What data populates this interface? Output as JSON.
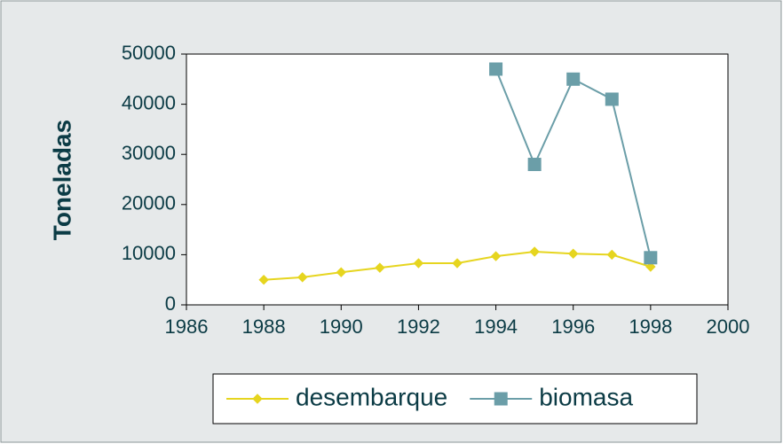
{
  "chart_data": {
    "type": "line",
    "ylabel": "Toneladas",
    "x": [
      1988,
      1989,
      1990,
      1991,
      1992,
      1993,
      1994,
      1995,
      1996,
      1997,
      1998
    ],
    "series": [
      {
        "name": "desembarque",
        "color": "#e6d51f",
        "marker": "diamond",
        "values": [
          5000,
          5500,
          6500,
          7400,
          8300,
          8300,
          9700,
          10600,
          10200,
          10000,
          7600
        ]
      },
      {
        "name": "biomasa",
        "color": "#6b9ea8",
        "marker": "square",
        "values": [
          null,
          null,
          null,
          null,
          null,
          null,
          47000,
          28000,
          45000,
          41000,
          9400
        ]
      }
    ],
    "xlim": [
      1986,
      2000
    ],
    "xticks": [
      1986,
      1988,
      1990,
      1992,
      1994,
      1996,
      1998,
      2000
    ],
    "ylim": [
      0,
      50000
    ],
    "yticks": [
      0,
      10000,
      20000,
      30000,
      40000,
      50000
    ],
    "grid": false,
    "legend": "bottom"
  }
}
